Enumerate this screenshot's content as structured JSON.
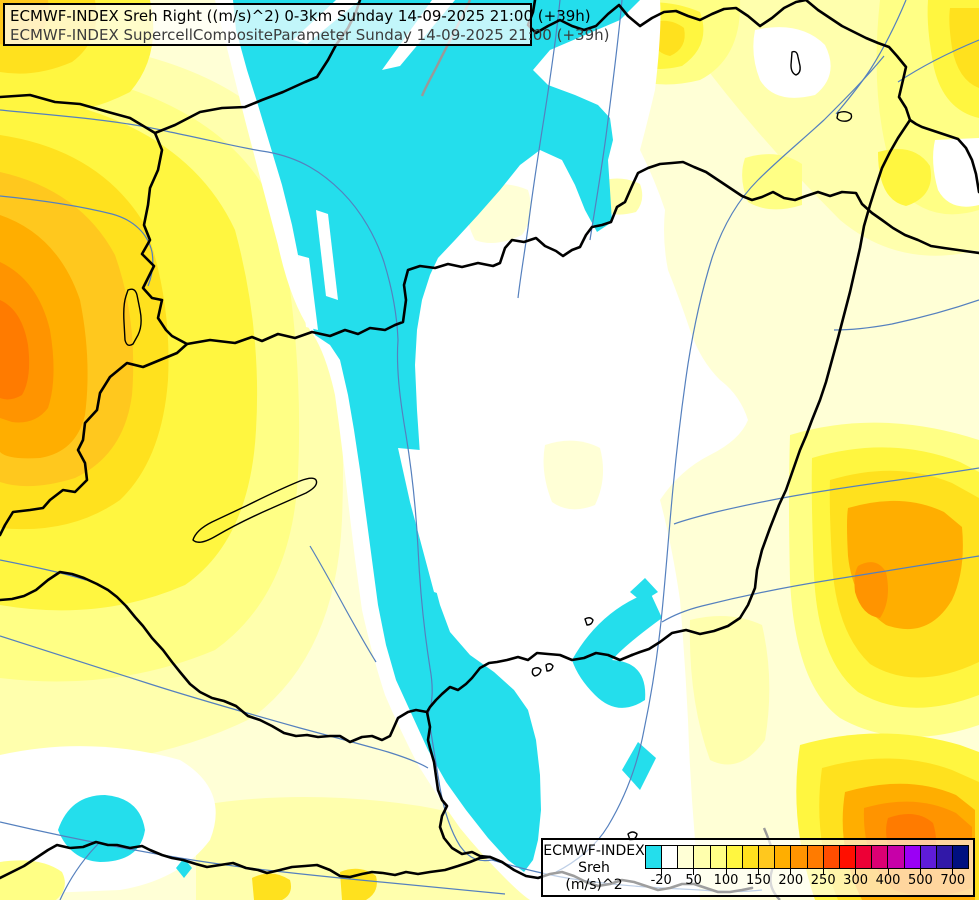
{
  "title_box": {
    "line1": "ECMWF-INDEX Sreh Right ((m/s)^2) 0-3km Sunday 14-09-2025 21:00 (+39h)",
    "line2": "ECMWF-INDEX SupercellCompositeParameter Sunday 14-09-2025 21:00 (+39h)"
  },
  "legend": {
    "product": "ECMWF-INDEX",
    "parameter": "Sreh",
    "units": "(m/s)^2",
    "cell_colors": [
      "#24DEEC",
      "#FFFFFF",
      "#FFFFD6",
      "#FFFFAD",
      "#FFFF85",
      "#FFF640",
      "#FFE11E",
      "#FFC81E",
      "#FFAE00",
      "#FF9400",
      "#FF7B00",
      "#FF4D00",
      "#FF0F00",
      "#ED0036",
      "#DC0073",
      "#C700A8",
      "#9B00F5",
      "#5F1CD8",
      "#3118A8",
      "#001080"
    ],
    "tick_labels": [
      "-20",
      "50",
      "100",
      "150",
      "200",
      "250",
      "300",
      "400",
      "500",
      "700"
    ],
    "tick_boundary_indices": [
      1,
      3,
      5,
      7,
      9,
      11,
      13,
      15,
      17,
      19
    ]
  },
  "map": {
    "palette": {
      "cyan_below_-20": "#24DEEC",
      "white_-20_to_25": "#FFFFFF",
      "cream_25_50": "#FFFFD6",
      "pale_yellow_50_75": "#FFFFAD",
      "light_yellow_75_100": "#FFFF85",
      "yellow_100_125": "#FFF640",
      "gold_125_150": "#FFE11E",
      "deep_gold_150_175": "#FFC81E",
      "amber_175_200": "#FFAE00",
      "orange_200_225": "#FF9400",
      "deep_orange_225_250": "#FF7B00"
    },
    "border_color": "#000000",
    "river_color": "#5580BE",
    "gray_line_color": "#999999"
  }
}
